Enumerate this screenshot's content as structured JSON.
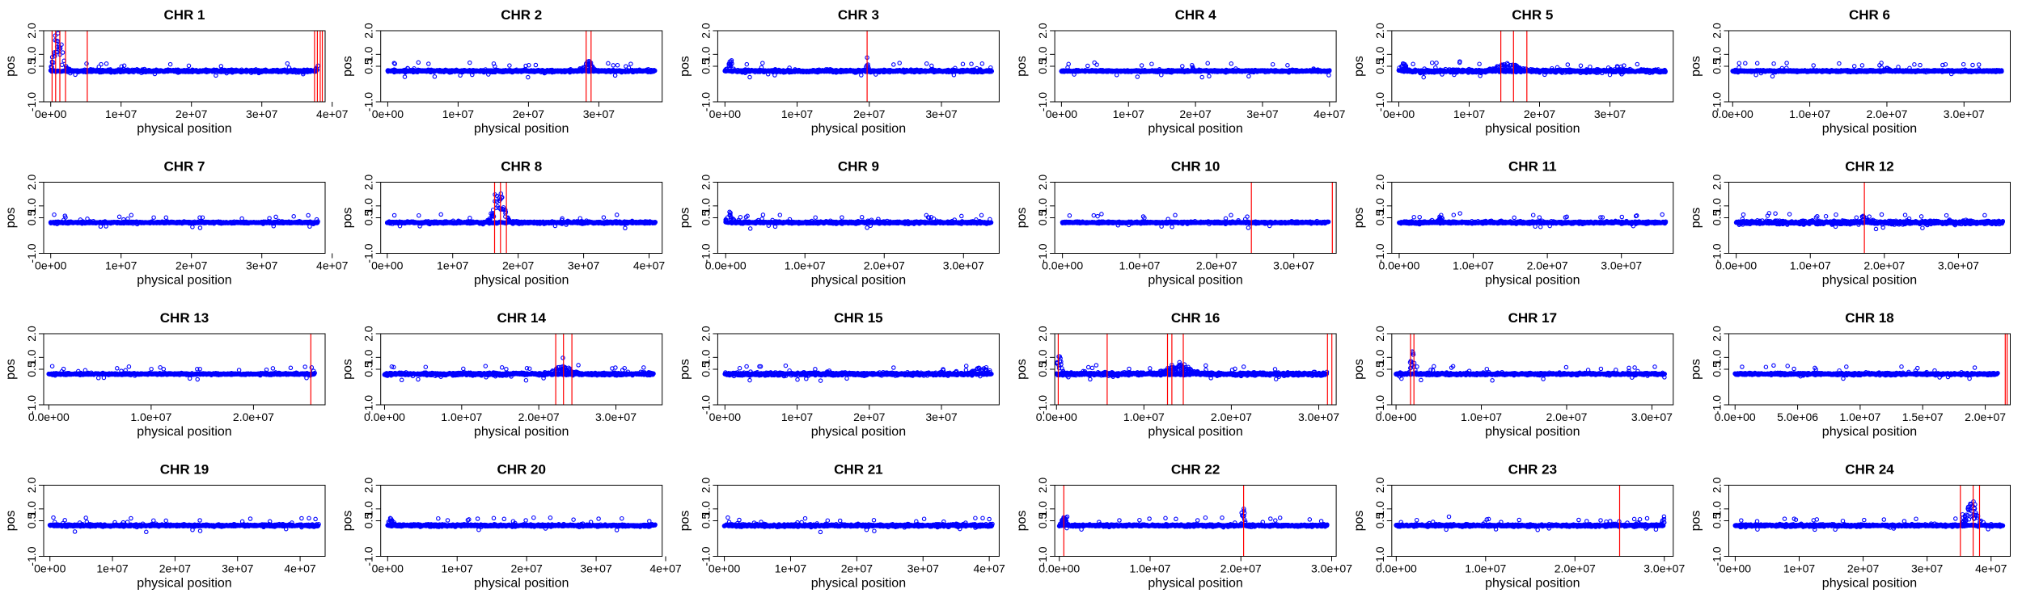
{
  "layout": {
    "rows": 4,
    "cols": 6
  },
  "colors": {
    "points": "#0000ff",
    "lines": "#ff0000",
    "frame": "#000000"
  },
  "chart_data": [
    {
      "type": "scatter",
      "title": "CHR 1",
      "xlabel": "physical position",
      "ylabel": "pos",
      "xlim": [
        -1000000,
        39000000
      ],
      "ylim": [
        -1.0,
        2.0
      ],
      "yticks": [
        -1.0,
        0.5,
        1.0,
        2.0
      ],
      "xticks": [
        0,
        10000000,
        20000000,
        30000000,
        40000000
      ],
      "xtick_labels": [
        "0e+00",
        "1e+07",
        "2e+07",
        "3e+07",
        "4e+07"
      ],
      "baseline": 0.3,
      "noise": 0.06,
      "vlines": [
        200000,
        700000,
        1300000,
        2100000,
        5200000,
        37500000,
        37900000,
        38300000,
        38600000
      ],
      "peaks": [
        {
          "x": 1000000,
          "h": 1.5,
          "w": 1200000
        },
        {
          "x": 38000000,
          "h": 0.6,
          "w": 400000
        }
      ]
    },
    {
      "type": "scatter",
      "title": "CHR 2",
      "xlabel": "physical position",
      "ylabel": "pos",
      "xlim": [
        -1000000,
        39000000
      ],
      "ylim": [
        -1.0,
        2.0
      ],
      "yticks": [
        -1.0,
        0.5,
        1.0,
        2.0
      ],
      "xticks": [
        0,
        10000000,
        20000000,
        30000000
      ],
      "xtick_labels": [
        "0e+00",
        "1e+07",
        "2e+07",
        "3e+07"
      ],
      "baseline": 0.3,
      "noise": 0.05,
      "vlines": [
        28200000,
        28900000
      ],
      "peaks": [
        {
          "x": 28500000,
          "h": 0.35,
          "w": 1200000
        }
      ]
    },
    {
      "type": "scatter",
      "title": "CHR 3",
      "xlabel": "physical position",
      "ylabel": "pos",
      "xlim": [
        -1000000,
        38000000
      ],
      "ylim": [
        -1.0,
        2.0
      ],
      "yticks": [
        -1.0,
        0.5,
        1.0,
        2.0
      ],
      "xticks": [
        0,
        10000000,
        20000000,
        30000000
      ],
      "xtick_labels": [
        "0e+00",
        "1e+07",
        "2e+07",
        "3e+07"
      ],
      "baseline": 0.3,
      "noise": 0.06,
      "vlines": [
        19700000
      ],
      "peaks": [
        {
          "x": 19700000,
          "h": 0.3,
          "w": 300000
        },
        {
          "x": 800000,
          "h": 0.4,
          "w": 600000
        }
      ]
    },
    {
      "type": "scatter",
      "title": "CHR 4",
      "xlabel": "physical position",
      "ylabel": "pos",
      "xlim": [
        -1000000,
        41000000
      ],
      "ylim": [
        -1.0,
        2.0
      ],
      "yticks": [
        -1.0,
        0.5,
        1.0,
        2.0
      ],
      "xticks": [
        0,
        10000000,
        20000000,
        30000000,
        40000000
      ],
      "xtick_labels": [
        "0e+00",
        "1e+07",
        "2e+07",
        "3e+07",
        "4e+07"
      ],
      "baseline": 0.3,
      "noise": 0.04,
      "vlines": [],
      "peaks": [
        {
          "x": 19500000,
          "h": 0.25,
          "w": 300000
        }
      ]
    },
    {
      "type": "scatter",
      "title": "CHR 5",
      "xlabel": "physical position",
      "ylabel": "pos",
      "xlim": [
        -1000000,
        39000000
      ],
      "ylim": [
        -1.0,
        2.0
      ],
      "yticks": [
        -1.0,
        0.5,
        1.0,
        2.0
      ],
      "xticks": [
        0,
        10000000,
        20000000,
        30000000
      ],
      "xtick_labels": [
        "0e+00",
        "1e+07",
        "2e+07",
        "3e+07"
      ],
      "baseline": 0.3,
      "noise": 0.07,
      "vlines": [
        14500000,
        16300000,
        18200000
      ],
      "peaks": [
        {
          "x": 15500000,
          "h": 0.3,
          "w": 2500000
        },
        {
          "x": 500000,
          "h": 0.3,
          "w": 800000
        }
      ]
    },
    {
      "type": "scatter",
      "title": "CHR 6",
      "xlabel": "physical position",
      "ylabel": "pos",
      "xlim": [
        -500000,
        36000000
      ],
      "ylim": [
        -1.0,
        2.0
      ],
      "yticks": [
        -1.0,
        0.5,
        1.0,
        2.0
      ],
      "xticks": [
        0,
        10000000,
        20000000,
        30000000
      ],
      "xtick_labels": [
        "0.0e+00",
        "1.0e+07",
        "2.0e+07",
        "3.0e+07"
      ],
      "baseline": 0.3,
      "noise": 0.04,
      "vlines": [],
      "peaks": [
        {
          "x": 20000000,
          "h": 0.15,
          "w": 500000
        }
      ]
    },
    {
      "type": "scatter",
      "title": "CHR 7",
      "xlabel": "physical position",
      "ylabel": "pos",
      "xlim": [
        -1000000,
        39000000
      ],
      "ylim": [
        -1.0,
        2.0
      ],
      "yticks": [
        -1.0,
        0.5,
        1.0,
        2.0
      ],
      "xticks": [
        0,
        10000000,
        20000000,
        30000000,
        40000000
      ],
      "xtick_labels": [
        "0e+00",
        "1e+07",
        "2e+07",
        "3e+07",
        "4e+07"
      ],
      "baseline": 0.3,
      "noise": 0.04,
      "vlines": [],
      "peaks": []
    },
    {
      "type": "scatter",
      "title": "CHR 8",
      "xlabel": "physical position",
      "ylabel": "pos",
      "xlim": [
        -1000000,
        42000000
      ],
      "ylim": [
        -1.0,
        2.0
      ],
      "yticks": [
        -1.0,
        0.5,
        1.0,
        2.0
      ],
      "xticks": [
        0,
        10000000,
        20000000,
        30000000,
        40000000
      ],
      "xtick_labels": [
        "0e+00",
        "1e+07",
        "2e+07",
        "3e+07",
        "4e+07"
      ],
      "baseline": 0.3,
      "noise": 0.05,
      "vlines": [
        16400000,
        17300000,
        18200000
      ],
      "peaks": [
        {
          "x": 17000000,
          "h": 1.4,
          "w": 1400000
        }
      ]
    },
    {
      "type": "scatter",
      "title": "CHR 9",
      "xlabel": "physical position",
      "ylabel": "pos",
      "xlim": [
        -1000000,
        34500000
      ],
      "ylim": [
        -1.0,
        2.0
      ],
      "yticks": [
        -1.0,
        0.5,
        1.0,
        2.0
      ],
      "xticks": [
        0,
        10000000,
        20000000,
        30000000
      ],
      "xtick_labels": [
        "0.0e+00",
        "1.0e+07",
        "2.0e+07",
        "3.0e+07"
      ],
      "baseline": 0.3,
      "noise": 0.05,
      "vlines": [],
      "peaks": [
        {
          "x": 500000,
          "h": 0.4,
          "w": 600000
        }
      ]
    },
    {
      "type": "scatter",
      "title": "CHR 10",
      "xlabel": "physical position",
      "ylabel": "pos",
      "xlim": [
        -1000000,
        35500000
      ],
      "ylim": [
        -1.0,
        2.0
      ],
      "yticks": [
        -1.0,
        0.5,
        1.0,
        2.0
      ],
      "xticks": [
        0,
        10000000,
        20000000,
        30000000
      ],
      "xtick_labels": [
        "0.0e+00",
        "1.0e+07",
        "2.0e+07",
        "3.0e+07"
      ],
      "baseline": 0.3,
      "noise": 0.04,
      "vlines": [
        24500000,
        35000000
      ],
      "peaks": [
        {
          "x": 35000000,
          "h": 0.6,
          "w": 300000
        }
      ]
    },
    {
      "type": "scatter",
      "title": "CHR 11",
      "xlabel": "physical position",
      "ylabel": "pos",
      "xlim": [
        -1000000,
        37000000
      ],
      "ylim": [
        -1.0,
        2.0
      ],
      "yticks": [
        -1.0,
        0.5,
        1.0,
        2.0
      ],
      "xticks": [
        0,
        10000000,
        20000000,
        30000000
      ],
      "xtick_labels": [
        "0.0e+00",
        "1.0e+07",
        "2.0e+07",
        "3.0e+07"
      ],
      "baseline": 0.3,
      "noise": 0.05,
      "vlines": [],
      "peaks": [
        {
          "x": 5500000,
          "h": 0.3,
          "w": 400000
        }
      ]
    },
    {
      "type": "scatter",
      "title": "CHR 12",
      "xlabel": "physical position",
      "ylabel": "pos",
      "xlim": [
        -1000000,
        37000000
      ],
      "ylim": [
        -1.0,
        2.0
      ],
      "yticks": [
        -1.0,
        0.5,
        1.0,
        2.0
      ],
      "xticks": [
        0,
        10000000,
        20000000,
        30000000
      ],
      "xtick_labels": [
        "0.0e+00",
        "1.0e+07",
        "2.0e+07",
        "3.0e+07"
      ],
      "baseline": 0.3,
      "noise": 0.08,
      "vlines": [
        17300000
      ],
      "peaks": [
        {
          "x": 17300000,
          "h": 0.35,
          "w": 500000
        }
      ]
    },
    {
      "type": "scatter",
      "title": "CHR 13",
      "xlabel": "physical position",
      "ylabel": "pos",
      "xlim": [
        -500000,
        27000000
      ],
      "ylim": [
        -1.0,
        2.0
      ],
      "yticks": [
        -1.0,
        0.5,
        1.0,
        2.0
      ],
      "xticks": [
        0,
        10000000,
        20000000
      ],
      "xtick_labels": [
        "0.0e+00",
        "1.0e+07",
        "2.0e+07"
      ],
      "baseline": 0.3,
      "noise": 0.04,
      "vlines": [
        25600000
      ],
      "peaks": []
    },
    {
      "type": "scatter",
      "title": "CHR 14",
      "xlabel": "physical position",
      "ylabel": "pos",
      "xlim": [
        -500000,
        36000000
      ],
      "ylim": [
        -1.0,
        2.0
      ],
      "yticks": [
        -1.0,
        0.5,
        1.0,
        2.0
      ],
      "xticks": [
        0,
        10000000,
        20000000,
        30000000
      ],
      "xtick_labels": [
        "0.0e+00",
        "1.0e+07",
        "2.0e+07",
        "3.0e+07"
      ],
      "baseline": 0.3,
      "noise": 0.06,
      "vlines": [
        22200000,
        23200000,
        24300000
      ],
      "peaks": [
        {
          "x": 23200000,
          "h": 0.3,
          "w": 2000000
        }
      ]
    },
    {
      "type": "scatter",
      "title": "CHR 15",
      "xlabel": "physical position",
      "ylabel": "pos",
      "xlim": [
        -1000000,
        38000000
      ],
      "ylim": [
        -1.0,
        2.0
      ],
      "yticks": [
        -1.0,
        0.5,
        1.0,
        2.0
      ],
      "xticks": [
        0,
        10000000,
        20000000,
        30000000
      ],
      "xtick_labels": [
        "0e+00",
        "1e+07",
        "2e+07",
        "3e+07"
      ],
      "baseline": 0.3,
      "noise": 0.07,
      "vlines": [],
      "peaks": [
        {
          "x": 35500000,
          "h": 0.3,
          "w": 1500000
        }
      ]
    },
    {
      "type": "scatter",
      "title": "CHR 16",
      "xlabel": "physical position",
      "ylabel": "pos",
      "xlim": [
        -200000,
        32000000
      ],
      "ylim": [
        -1.0,
        2.0
      ],
      "yticks": [
        -1.0,
        0.5,
        1.0,
        2.0
      ],
      "xticks": [
        0,
        10000000,
        20000000,
        30000000
      ],
      "xtick_labels": [
        "0.0e+00",
        "1.0e+07",
        "2.0e+07",
        "3.0e+07"
      ],
      "baseline": 0.3,
      "noise": 0.07,
      "vlines": [
        200000,
        5800000,
        12700000,
        13200000,
        14500000,
        31000000,
        31500000
      ],
      "peaks": [
        {
          "x": 300000,
          "h": 0.8,
          "w": 400000
        },
        {
          "x": 14000000,
          "h": 0.35,
          "w": 2500000
        },
        {
          "x": 31300000,
          "h": 0.5,
          "w": 400000
        }
      ]
    },
    {
      "type": "scatter",
      "title": "CHR 17",
      "xlabel": "physical position",
      "ylabel": "pos",
      "xlim": [
        -500000,
        32500000
      ],
      "ylim": [
        -1.0,
        2.0
      ],
      "yticks": [
        -1.0,
        0.5,
        1.0,
        2.0
      ],
      "xticks": [
        0,
        10000000,
        20000000,
        30000000
      ],
      "xtick_labels": [
        "0.0e+00",
        "1.0e+07",
        "2.0e+07",
        "3.0e+07"
      ],
      "baseline": 0.3,
      "noise": 0.05,
      "vlines": [
        1700000,
        2100000
      ],
      "peaks": [
        {
          "x": 1900000,
          "h": 0.9,
          "w": 400000
        }
      ]
    },
    {
      "type": "scatter",
      "title": "CHR 18",
      "xlabel": "physical position",
      "ylabel": "pos",
      "xlim": [
        -500000,
        22000000
      ],
      "ylim": [
        -1.0,
        2.0
      ],
      "yticks": [
        -1.0,
        0.5,
        1.0,
        2.0
      ],
      "xticks": [
        0,
        5000000,
        10000000,
        15000000,
        20000000
      ],
      "xtick_labels": [
        "0.0e+00",
        "5.0e+06",
        "1.0e+07",
        "1.5e+07",
        "2.0e+07"
      ],
      "baseline": 0.3,
      "noise": 0.05,
      "vlines": [
        21600000,
        21750000
      ],
      "peaks": [
        {
          "x": 21600000,
          "h": 1.4,
          "w": 250000
        }
      ]
    },
    {
      "type": "scatter",
      "title": "CHR 19",
      "xlabel": "physical position",
      "ylabel": "pos",
      "xlim": [
        -1000000,
        44000000
      ],
      "ylim": [
        -1.0,
        2.0
      ],
      "yticks": [
        -1.0,
        0.5,
        1.0,
        2.0
      ],
      "xticks": [
        0,
        10000000,
        20000000,
        30000000,
        40000000
      ],
      "xtick_labels": [
        "0e+00",
        "1e+07",
        "2e+07",
        "3e+07",
        "4e+07"
      ],
      "baseline": 0.3,
      "noise": 0.05,
      "vlines": [],
      "peaks": []
    },
    {
      "type": "scatter",
      "title": "CHR 20",
      "xlabel": "physical position",
      "ylabel": "pos",
      "xlim": [
        -1000000,
        39500000
      ],
      "ylim": [
        -1.0,
        2.0
      ],
      "yticks": [
        -1.0,
        0.5,
        1.0,
        2.0
      ],
      "xticks": [
        0,
        10000000,
        20000000,
        30000000,
        40000000
      ],
      "xtick_labels": [
        "0e+00",
        "1e+07",
        "2e+07",
        "3e+07",
        "4e+07"
      ],
      "baseline": 0.3,
      "noise": 0.05,
      "vlines": [],
      "peaks": [
        {
          "x": 400000,
          "h": 0.3,
          "w": 500000
        }
      ]
    },
    {
      "type": "scatter",
      "title": "CHR 21",
      "xlabel": "physical position",
      "ylabel": "pos",
      "xlim": [
        -1000000,
        41500000
      ],
      "ylim": [
        -1.0,
        2.0
      ],
      "yticks": [
        -1.0,
        0.5,
        1.0,
        2.0
      ],
      "xticks": [
        0,
        10000000,
        20000000,
        30000000,
        40000000
      ],
      "xtick_labels": [
        "0e+00",
        "1e+07",
        "2e+07",
        "3e+07",
        "4e+07"
      ],
      "baseline": 0.3,
      "noise": 0.06,
      "vlines": [],
      "peaks": []
    },
    {
      "type": "scatter",
      "title": "CHR 22",
      "xlabel": "physical position",
      "ylabel": "pos",
      "xlim": [
        -500000,
        30500000
      ],
      "ylim": [
        -1.0,
        2.0
      ],
      "yticks": [
        -1.0,
        0.5,
        1.0,
        2.0
      ],
      "xticks": [
        0,
        10000000,
        20000000,
        30000000
      ],
      "xtick_labels": [
        "0.0e+00",
        "1.0e+07",
        "2.0e+07",
        "3.0e+07"
      ],
      "baseline": 0.3,
      "noise": 0.05,
      "vlines": [
        500000,
        20300000
      ],
      "peaks": [
        {
          "x": 20300000,
          "h": 0.6,
          "w": 300000
        },
        {
          "x": 500000,
          "h": 0.3,
          "w": 500000
        }
      ]
    },
    {
      "type": "scatter",
      "title": "CHR 23",
      "xlabel": "physical position",
      "ylabel": "pos",
      "xlim": [
        -500000,
        31000000
      ],
      "ylim": [
        -1.0,
        2.0
      ],
      "yticks": [
        -1.0,
        0.5,
        1.0,
        2.0
      ],
      "xticks": [
        0,
        10000000,
        20000000,
        30000000
      ],
      "xtick_labels": [
        "0.0e+00",
        "1.0e+07",
        "2.0e+07",
        "3.0e+07"
      ],
      "baseline": 0.3,
      "noise": 0.05,
      "vlines": [
        25000000
      ],
      "peaks": [
        {
          "x": 30000000,
          "h": 0.25,
          "w": 500000
        }
      ]
    },
    {
      "type": "scatter",
      "title": "CHR 24",
      "xlabel": "physical position",
      "ylabel": "pos",
      "xlim": [
        -1000000,
        43000000
      ],
      "ylim": [
        -1.0,
        2.0
      ],
      "yticks": [
        -1.0,
        0.5,
        1.0,
        2.0
      ],
      "xticks": [
        0,
        10000000,
        20000000,
        30000000,
        40000000
      ],
      "xtick_labels": [
        "0e+00",
        "1e+07",
        "2e+07",
        "3e+07",
        "4e+07"
      ],
      "baseline": 0.3,
      "noise": 0.05,
      "vlines": [
        35200000,
        37200000,
        38200000
      ],
      "peaks": [
        {
          "x": 37000000,
          "h": 1.0,
          "w": 1500000
        }
      ]
    }
  ]
}
